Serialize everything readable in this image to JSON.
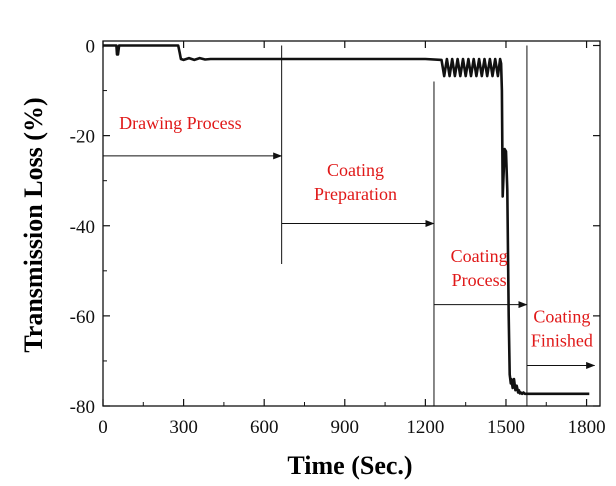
{
  "chart_data": {
    "type": "line",
    "xlabel": "Time (Sec.)",
    "ylabel": "Transmission Loss (%)",
    "xlim": [
      0,
      1850
    ],
    "ylim": [
      -80,
      1
    ],
    "x_ticks": [
      0,
      300,
      600,
      900,
      1200,
      1500,
      1800
    ],
    "y_ticks": [
      0,
      -20,
      -40,
      -60,
      -80
    ],
    "grid": false,
    "line_color": "#111111",
    "annotation_color": "#e01818",
    "series": [
      {
        "x": [
          0,
          50,
          52,
          56,
          60,
          280,
          285,
          290,
          300,
          320,
          340,
          360,
          380,
          400,
          450,
          500,
          600,
          700,
          800,
          900,
          1000,
          1100,
          1200,
          1260,
          1270,
          1280,
          1290,
          1300,
          1310,
          1320,
          1330,
          1340,
          1350,
          1360,
          1370,
          1380,
          1390,
          1400,
          1410,
          1420,
          1430,
          1440,
          1450,
          1460,
          1470,
          1478,
          1482,
          1485,
          1488,
          1495,
          1500,
          1505,
          1510,
          1514,
          1518,
          1520,
          1525,
          1530,
          1535,
          1540,
          1545,
          1548,
          1552,
          1555,
          1560,
          1565,
          1570,
          1580,
          1600,
          1700,
          1800,
          1810
        ],
        "y": [
          0,
          0,
          -2,
          -2,
          0,
          0,
          -1.5,
          -3,
          -3.2,
          -2.8,
          -3.2,
          -2.8,
          -3.1,
          -3,
          -3,
          -3,
          -3,
          -3,
          -3,
          -3,
          -3,
          -3,
          -3,
          -3.2,
          -6.8,
          -3,
          -6.8,
          -3,
          -6.8,
          -3,
          -6.8,
          -3,
          -6.8,
          -3,
          -6.8,
          -3,
          -6.8,
          -3,
          -6.8,
          -3,
          -6.8,
          -3,
          -6.8,
          -3,
          -6.8,
          -3,
          -4,
          -10,
          -33.5,
          -23,
          -23.5,
          -32,
          -60,
          -73,
          -75,
          -74,
          -76,
          -74,
          -76.5,
          -75.5,
          -77,
          -76.5,
          -77.2,
          -77,
          -77.3,
          -77,
          -77.3,
          -77.3,
          -77.3,
          -77.3,
          -77.3,
          -77.3
        ]
      }
    ],
    "markers": [
      {
        "x": 665,
        "y_from": 0,
        "y_to": -48.5
      },
      {
        "x": 1232,
        "y_from": -8,
        "y_to": -80
      },
      {
        "x": 1578,
        "y_from": 0,
        "y_to": -80
      }
    ],
    "arrows": [
      {
        "x1": 0,
        "x2": 665,
        "y": -24.5
      },
      {
        "x1": 665,
        "x2": 1232,
        "y": -39.5
      },
      {
        "x1": 1232,
        "x2": 1578,
        "y": -57.5
      },
      {
        "x1": 1578,
        "x2": 1830,
        "y": -71
      }
    ],
    "annotations": [
      {
        "lines": [
          "Drawing Process"
        ],
        "x": 60,
        "y": -18.5,
        "anchor": "start"
      },
      {
        "lines": [
          "Coating",
          "Preparation"
        ],
        "x": 940,
        "y": -29,
        "anchor": "middle"
      },
      {
        "lines": [
          "Coating",
          "Process"
        ],
        "x": 1400,
        "y": -48,
        "anchor": "middle"
      },
      {
        "lines": [
          "Coating",
          "Finished"
        ],
        "x": 1708,
        "y": -61.5,
        "anchor": "middle"
      }
    ]
  }
}
